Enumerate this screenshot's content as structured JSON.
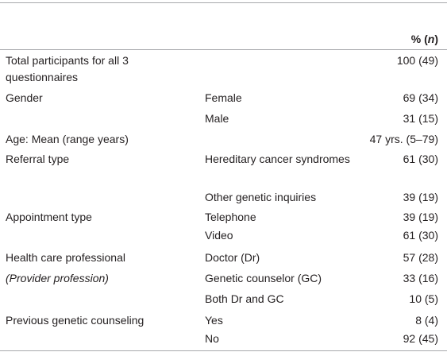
{
  "table": {
    "header": {
      "pre": "% (",
      "italic": "n",
      "post": ")"
    },
    "rows": [
      {
        "group": "Total participants for all 3 questionnaires",
        "value": "100 (49)"
      },
      {
        "group": "Gender",
        "item": "Female",
        "value": "69 (34)"
      },
      {
        "item": "Male",
        "value": "31 (15)"
      },
      {
        "group": "Age: Mean (range years)",
        "value": "47 yrs. (5–79)"
      },
      {
        "group": "Referral type",
        "item": "Hereditary cancer syndromes",
        "value": "61 (30)"
      },
      {
        "item": "Other genetic inquiries",
        "value": "39 (19)"
      },
      {
        "group": "Appointment type",
        "item": "Telephone",
        "value": "39 (19)"
      },
      {
        "item": "Video",
        "value": "61 (30)"
      },
      {
        "group": "Health care professional",
        "item": "Doctor (Dr)",
        "value": "57 (28)"
      },
      {
        "group": "(Provider profession)",
        "item": "Genetic counselor (GC)",
        "value": "33 (16)"
      },
      {
        "item": "Both Dr and GC",
        "value": "10 (5)"
      },
      {
        "group": "Previous genetic counseling",
        "item": "Yes",
        "value": "8 (4)"
      },
      {
        "item": "No",
        "value": "92 (45)"
      }
    ]
  }
}
